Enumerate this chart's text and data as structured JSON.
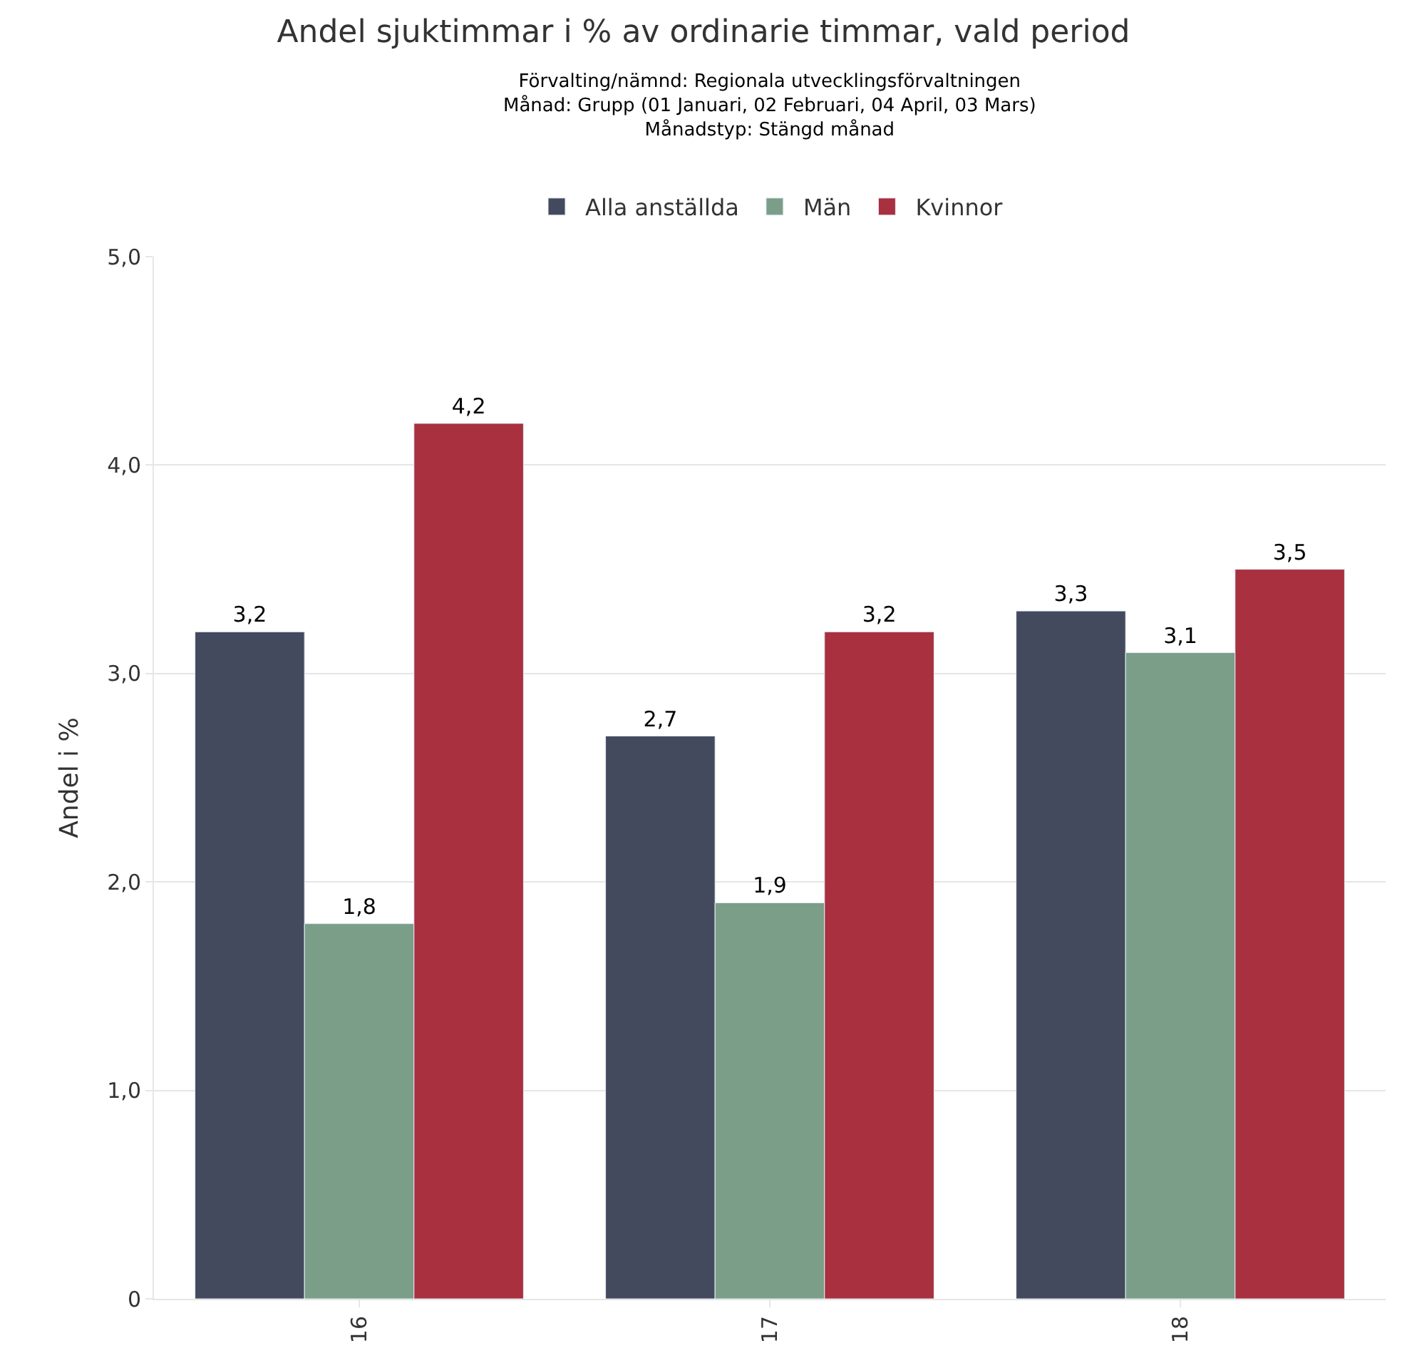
{
  "chart_data": {
    "type": "bar",
    "title": "Andel sjuktimmar i % av ordinarie timmar, vald period",
    "subtitle": "Förvalting/nämnd: Regionala utvecklingsförvaltningen\nMånad: Grupp (01 Januari, 02 Februari, 04 April, 03 Mars)\nMånadstyp: Stängd månad",
    "ylabel": "Andel i %",
    "categories": [
      "16",
      "17",
      "18"
    ],
    "series": [
      {
        "name": "Alla anställda",
        "color": "#434a5e",
        "values": [
          3.2,
          2.7,
          3.3
        ],
        "value_labels": [
          "3,2",
          "2,7",
          "3,3"
        ]
      },
      {
        "name": "Män",
        "color": "#7b9e89",
        "values": [
          1.8,
          1.9,
          3.1
        ],
        "value_labels": [
          "1,8",
          "1,9",
          "3,1"
        ]
      },
      {
        "name": "Kvinnor",
        "color": "#a8303f",
        "values": [
          4.2,
          3.2,
          3.5
        ],
        "value_labels": [
          "4,2",
          "3,2",
          "3,5"
        ]
      }
    ],
    "ylim": [
      0,
      5
    ],
    "yticks": [
      {
        "value": 0,
        "label": "0"
      },
      {
        "value": 1,
        "label": "1,0"
      },
      {
        "value": 2,
        "label": "2,0"
      },
      {
        "value": 3,
        "label": "3,0"
      },
      {
        "value": 4,
        "label": "4,0"
      },
      {
        "value": 5,
        "label": "5,0"
      }
    ],
    "grid": "y",
    "legend": "top"
  }
}
